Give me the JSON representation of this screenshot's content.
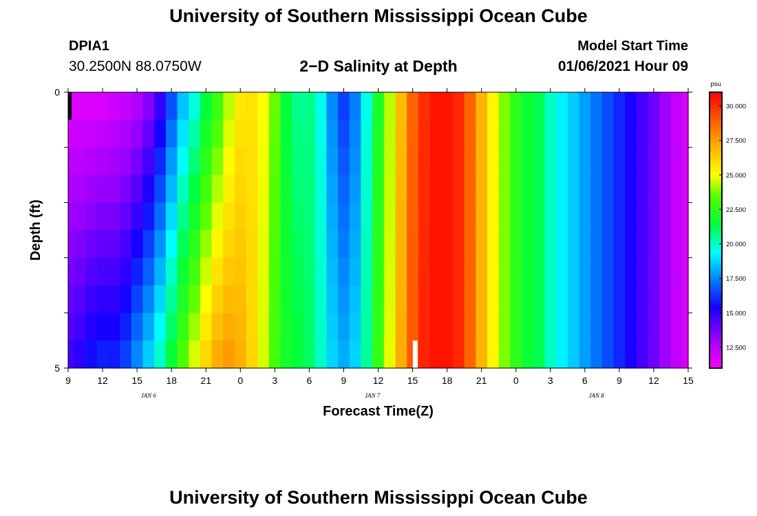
{
  "header": {
    "title": "University of Southern Mississippi Ocean Cube",
    "station_id": "DPIA1",
    "station_coords": "30.2500N 88.0750W",
    "plot_title": "2−D Salinity at Depth",
    "model_start_label": "Model Start Time",
    "model_start_value": "01/06/2021 Hour 09"
  },
  "footer": {
    "title": "University of Southern Mississippi Ocean Cube"
  },
  "chart_data": {
    "type": "heatmap",
    "xlabel": "Forecast Time(Z)",
    "ylabel": "Depth (ft)",
    "x_tick_labels": [
      "9",
      "12",
      "15",
      "18",
      "21",
      "0",
      "3",
      "6",
      "9",
      "12",
      "15",
      "18",
      "21",
      "0",
      "3",
      "6",
      "9",
      "12",
      "15"
    ],
    "x_date_labels": [
      {
        "label": "JAN  6",
        "hour_index": 7
      },
      {
        "label": "JAN  7",
        "hour_index": 26.5
      },
      {
        "label": "JAN  8",
        "hour_index": 46
      }
    ],
    "y_tick_labels": [
      "0",
      "5"
    ],
    "ylim": [
      0,
      5
    ],
    "x_hours_from_start": [
      0,
      54
    ],
    "depth_levels_ft": [
      0.25,
      0.75,
      1.25,
      1.75,
      2.25,
      2.75,
      3.25,
      3.75,
      4.25,
      4.75
    ],
    "colorbar": {
      "unit": "psu",
      "tick_labels": [
        "12.500",
        "15.000",
        "17.500",
        "20.000",
        "22.500",
        "25.000",
        "27.500",
        "30.000"
      ],
      "range": [
        11.0,
        31.0
      ]
    },
    "salinity_surface_profile": [
      11.5,
      11.5,
      11.5,
      11.6,
      11.8,
      12.0,
      12.4,
      13.2,
      14.6,
      16.4,
      18.2,
      19.5,
      21.2,
      22.6,
      24.2,
      25.5,
      25.7,
      25.0,
      23.6,
      21.4,
      20.5,
      20.6,
      19.6,
      17.5,
      16.3,
      17.3,
      19.6,
      22.0,
      24.3,
      26.8,
      28.8,
      30.0,
      30.6,
      30.6,
      30.1,
      28.8,
      27.0,
      25.2,
      23.8,
      22.5,
      21.7,
      21.2,
      20.0,
      19.2,
      18.6,
      17.9,
      17.2,
      16.6,
      16.0,
      15.3,
      14.6,
      13.9,
      13.0,
      12.3,
      11.8
    ],
    "salinity_bottom_profile": [
      14.8,
      15.2,
      15.8,
      16.1,
      16.0,
      16.6,
      17.8,
      18.9,
      20.2,
      21.8,
      23.5,
      24.9,
      26.3,
      27.4,
      27.7,
      27.2,
      26.1,
      24.6,
      23.0,
      22.0,
      21.5,
      21.0,
      20.0,
      18.8,
      18.2,
      18.8,
      20.5,
      22.8,
      24.8,
      27.2,
      29.0,
      30.2,
      30.6,
      30.6,
      30.1,
      28.8,
      27.0,
      25.2,
      23.8,
      22.5,
      21.7,
      21.2,
      20.0,
      19.2,
      18.6,
      17.9,
      17.2,
      16.6,
      16.0,
      15.3,
      14.6,
      13.9,
      13.0,
      12.3,
      11.8
    ]
  }
}
